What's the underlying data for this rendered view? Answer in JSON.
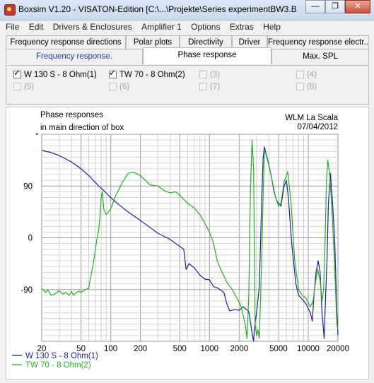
{
  "window": {
    "title": "Boxsim V1.20 - VISATON-Edition [C:\\...\\Projekte\\Series experimentBW3.B...",
    "minimize_glyph": "—",
    "restore_glyph": "❐",
    "close_glyph": "✕"
  },
  "menu": [
    "File",
    "Edit",
    "Drivers & Enclosures",
    "Amplifier 1",
    "Options",
    "Extras",
    "Help"
  ],
  "tabs_row1": [
    "Frequency response directions",
    "Polar plots",
    "Directivity",
    "Driver",
    "Frequency response electr.."
  ],
  "tabs_row2": [
    "Frequency response.",
    "Phase response",
    "Max. SPL"
  ],
  "selected_tab": "Phase response",
  "drivers": [
    {
      "label": "W 130 S - 8 Ohm(1)",
      "checked": true,
      "enabled": true
    },
    {
      "label": "TW 70 - 8 Ohm(2)",
      "checked": true,
      "enabled": true
    },
    {
      "label": "(3)",
      "checked": false,
      "enabled": false
    },
    {
      "label": "(4)",
      "checked": false,
      "enabled": false
    },
    {
      "label": "(5)",
      "checked": false,
      "enabled": false
    },
    {
      "label": "(6)",
      "checked": false,
      "enabled": false
    },
    {
      "label": "(7)",
      "checked": false,
      "enabled": false
    },
    {
      "label": "(8)",
      "checked": false,
      "enabled": false
    }
  ],
  "chart_data": {
    "type": "line",
    "title": "Phase responses",
    "subtitle": "in main direction of box",
    "header_right_1": "WLM La Scala",
    "header_right_2": "07/04/2012",
    "x_scale": "log",
    "xlim": [
      20,
      20000
    ],
    "ylim": [
      -180,
      180
    ],
    "x_ticks": [
      20,
      50,
      100,
      200,
      500,
      1000,
      2000,
      5000,
      10000,
      20000
    ],
    "x_tick_labels": [
      "20",
      "50",
      "100",
      "200",
      "500",
      "1000",
      "2000",
      "5000",
      "10000",
      "20000"
    ],
    "y_ticks": [
      90,
      0,
      -90
    ],
    "y_tick_labels": [
      "90",
      "0",
      "-90"
    ],
    "y_top_marker": "°",
    "grid": true,
    "legend_position": "bottom-left",
    "series": [
      {
        "name": "W 130 S - 8 Ohm(1)",
        "color": "#1f1fa0",
        "points": [
          [
            20,
            152
          ],
          [
            25,
            148
          ],
          [
            30,
            143
          ],
          [
            40,
            132
          ],
          [
            50,
            120
          ],
          [
            60,
            108
          ],
          [
            70,
            96
          ],
          [
            80,
            86
          ],
          [
            90,
            78
          ],
          [
            100,
            70
          ],
          [
            120,
            58
          ],
          [
            150,
            45
          ],
          [
            200,
            30
          ],
          [
            250,
            18
          ],
          [
            300,
            8
          ],
          [
            400,
            -3
          ],
          [
            500,
            -15
          ],
          [
            550,
            -20
          ],
          [
            580,
            -55
          ],
          [
            620,
            -45
          ],
          [
            700,
            -52
          ],
          [
            800,
            -65
          ],
          [
            900,
            -72
          ],
          [
            1000,
            -73
          ],
          [
            1100,
            -85
          ],
          [
            1200,
            -87
          ],
          [
            1400,
            -95
          ],
          [
            1500,
            -115
          ],
          [
            1600,
            -127
          ],
          [
            1800,
            -125
          ],
          [
            2000,
            -126
          ],
          [
            2200,
            -120
          ],
          [
            2500,
            -128
          ],
          [
            2700,
            -165
          ],
          [
            2800,
            -180
          ],
          [
            2850,
            -160
          ],
          [
            3000,
            -130
          ],
          [
            3200,
            -85
          ],
          [
            3400,
            80
          ],
          [
            3500,
            140
          ],
          [
            3600,
            158
          ],
          [
            3700,
            150
          ],
          [
            3900,
            135
          ],
          [
            4200,
            110
          ],
          [
            4500,
            80
          ],
          [
            4800,
            65
          ],
          [
            5000,
            60
          ],
          [
            5300,
            55
          ],
          [
            5700,
            90
          ],
          [
            6000,
            100
          ],
          [
            6300,
            70
          ],
          [
            6800,
            -10
          ],
          [
            7500,
            -80
          ],
          [
            8000,
            -100
          ],
          [
            8500,
            -105
          ],
          [
            9000,
            -110
          ],
          [
            9500,
            -115
          ],
          [
            10500,
            -130
          ],
          [
            11000,
            -145
          ],
          [
            11500,
            -95
          ],
          [
            12000,
            -60
          ],
          [
            12600,
            -40
          ],
          [
            13200,
            -60
          ],
          [
            13800,
            -130
          ],
          [
            14500,
            -175
          ],
          [
            15000,
            -100
          ],
          [
            15500,
            -40
          ],
          [
            16000,
            60
          ],
          [
            16800,
            112
          ],
          [
            17500,
            70
          ],
          [
            18500,
            0
          ],
          [
            19500,
            -130
          ],
          [
            20000,
            -170
          ]
        ]
      },
      {
        "name": "TW 70 - 8 Ohm(2)",
        "color": "#22b022",
        "points": [
          [
            20,
            -88
          ],
          [
            21,
            -92
          ],
          [
            22,
            -95
          ],
          [
            23,
            -90
          ],
          [
            25,
            -100
          ],
          [
            27,
            -98
          ],
          [
            30,
            -92
          ],
          [
            33,
            -98
          ],
          [
            35,
            -95
          ],
          [
            38,
            -100
          ],
          [
            40,
            -93
          ],
          [
            42,
            -100
          ],
          [
            45,
            -95
          ],
          [
            48,
            -93
          ],
          [
            50,
            -95
          ],
          [
            55,
            -90
          ],
          [
            60,
            -88
          ],
          [
            62,
            -72
          ],
          [
            65,
            -55
          ],
          [
            68,
            -35
          ],
          [
            70,
            -20
          ],
          [
            72,
            -5
          ],
          [
            75,
            10
          ],
          [
            78,
            40
          ],
          [
            80,
            70
          ],
          [
            82,
            80
          ],
          [
            85,
            50
          ],
          [
            90,
            40
          ],
          [
            100,
            50
          ],
          [
            110,
            70
          ],
          [
            130,
            95
          ],
          [
            150,
            112
          ],
          [
            170,
            114
          ],
          [
            200,
            108
          ],
          [
            250,
            92
          ],
          [
            300,
            90
          ],
          [
            350,
            82
          ],
          [
            400,
            78
          ],
          [
            450,
            80
          ],
          [
            500,
            74
          ],
          [
            600,
            60
          ],
          [
            700,
            52
          ],
          [
            800,
            40
          ],
          [
            900,
            25
          ],
          [
            1000,
            10
          ],
          [
            1100,
            -10
          ],
          [
            1200,
            -40
          ],
          [
            1300,
            -55
          ],
          [
            1500,
            -77
          ],
          [
            1700,
            -90
          ],
          [
            1900,
            -105
          ],
          [
            2100,
            -120
          ],
          [
            2300,
            -150
          ],
          [
            2400,
            -175
          ],
          [
            2500,
            -100
          ],
          [
            2600,
            80
          ],
          [
            2700,
            170
          ],
          [
            2800,
            120
          ],
          [
            2900,
            -150
          ],
          [
            3000,
            -170
          ],
          [
            3100,
            -160
          ],
          [
            3200,
            -175
          ],
          [
            3300,
            -100
          ],
          [
            3400,
            -20
          ],
          [
            3500,
            80
          ],
          [
            3600,
            150
          ],
          [
            3700,
            148
          ],
          [
            3800,
            140
          ],
          [
            4000,
            125
          ],
          [
            4300,
            100
          ],
          [
            4600,
            75
          ],
          [
            5000,
            55
          ],
          [
            5300,
            60
          ],
          [
            5700,
            98
          ],
          [
            6200,
            115
          ],
          [
            6700,
            60
          ],
          [
            7300,
            -40
          ],
          [
            8000,
            -90
          ],
          [
            8700,
            -100
          ],
          [
            9500,
            -105
          ],
          [
            10500,
            -120
          ],
          [
            11200,
            -110
          ],
          [
            11800,
            -80
          ],
          [
            12500,
            -55
          ],
          [
            13200,
            -75
          ],
          [
            13800,
            -110
          ],
          [
            14300,
            -90
          ],
          [
            14800,
            -10
          ],
          [
            15300,
            100
          ],
          [
            15800,
            135
          ],
          [
            16500,
            110
          ],
          [
            17500,
            40
          ],
          [
            18500,
            -50
          ],
          [
            19500,
            -150
          ],
          [
            20000,
            -160
          ]
        ]
      }
    ]
  }
}
